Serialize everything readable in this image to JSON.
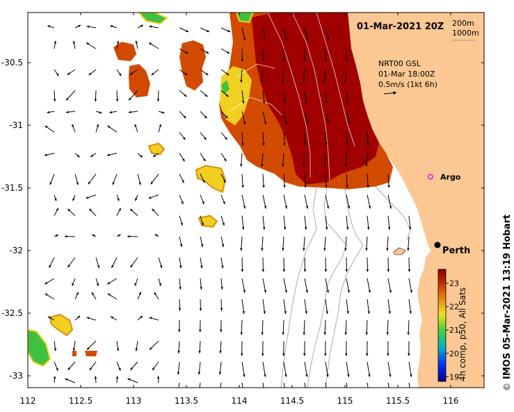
{
  "map": {
    "title": "01-Mar-2021 20Z",
    "depth_legend": [
      "200m",
      "1000m"
    ],
    "current_info": [
      "NRT00 GSL",
      "01-Mar 18:00Z",
      "0.5m/s (1kt 6h)"
    ],
    "x_ticks": [
      "112",
      "112.5",
      "113",
      "113.5",
      "114",
      "114.5",
      "115",
      "115.5",
      "116"
    ],
    "y_ticks": [
      "-30.5",
      "-31",
      "-31.5",
      "-32",
      "-32.5",
      "-33"
    ],
    "places": [
      {
        "name": "Perth",
        "lon": 115.86,
        "lat": -31.95,
        "marker": "black-dot"
      },
      {
        "name": "Argo",
        "lon": 115.76,
        "lat": -31.45,
        "marker": "magenta-circle"
      }
    ],
    "colorbar": {
      "label": "4h comp, p50, All Sats",
      "ticks": [
        "19",
        "20",
        "21",
        "22",
        "23"
      ],
      "min": 18.8,
      "max": 23.6
    },
    "credit": "IMOS 05-Mar-2021 13:19 Hobart",
    "copyright_symbol": "©",
    "colors": {
      "land": "#fbc792",
      "sst_hot": "#a00000",
      "sst_warm": "#d24a00",
      "sst_mid": "#e08a10",
      "sst_yellow": "#f0d020",
      "sst_green": "#40c040",
      "sst_cyan": "#10a0a0",
      "isobath": "#aaaaaa",
      "arrow": "#000000"
    }
  }
}
